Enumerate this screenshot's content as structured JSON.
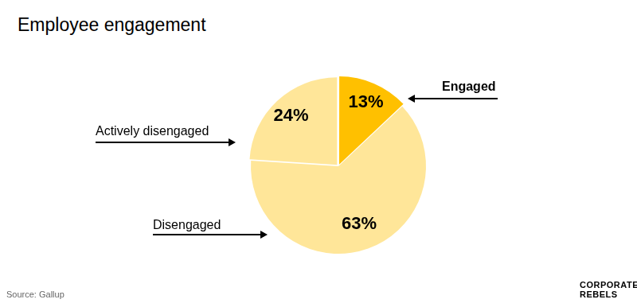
{
  "chart_data": {
    "type": "pie",
    "title": "Employee engagement",
    "categories": [
      "Engaged",
      "Disengaged",
      "Actively disengaged"
    ],
    "values": [
      13,
      63,
      24
    ],
    "value_labels": [
      "13%",
      "63%",
      "24%"
    ],
    "colors": [
      "#FFC000",
      "#FFE699",
      "#FFE699"
    ],
    "data_labels": true,
    "source": "Source: Gallup",
    "logo": "CORPORATE REBELS"
  }
}
